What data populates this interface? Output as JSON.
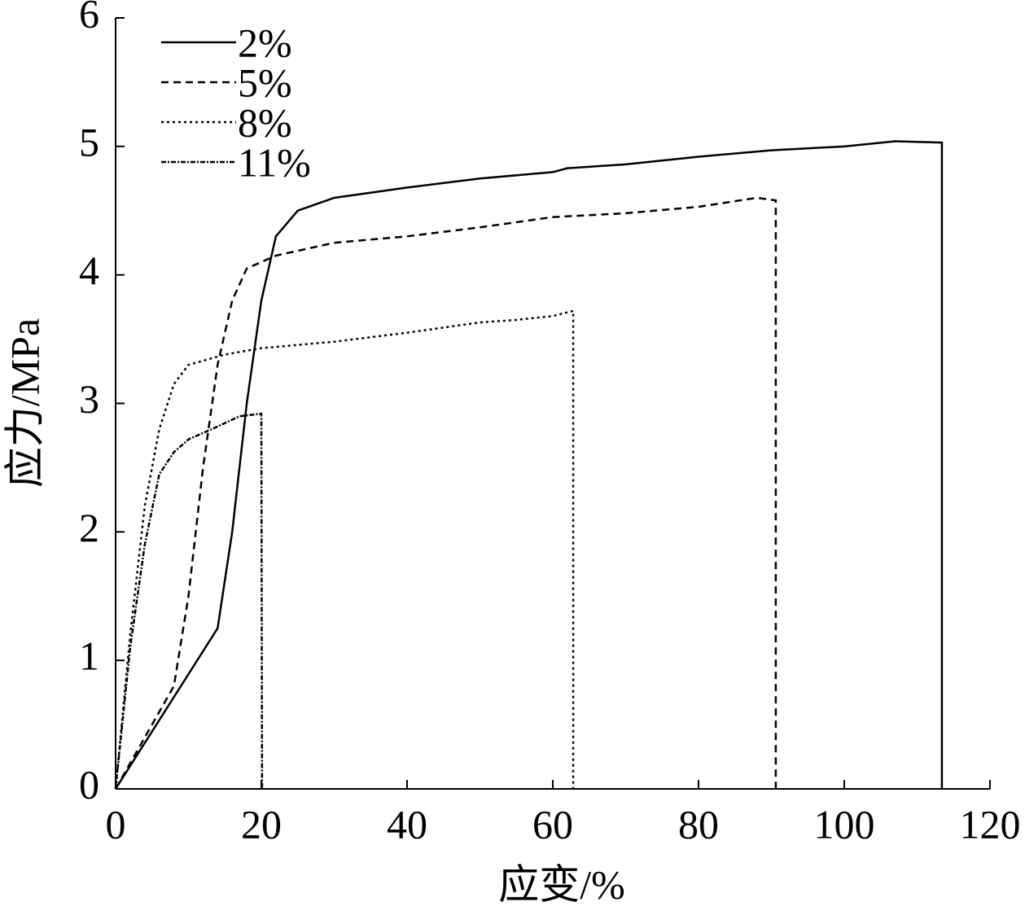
{
  "chart_data": {
    "type": "line",
    "x_label": "应变/%",
    "y_label": "应力/MPa",
    "xlim": [
      0,
      120
    ],
    "xticks": [
      0,
      20,
      40,
      60,
      80,
      100,
      120
    ],
    "ylim": [
      0,
      6
    ],
    "yticks": [
      0,
      1,
      2,
      3,
      4,
      5,
      6
    ],
    "grid": false,
    "legend": "upper left",
    "series": [
      {
        "name": "2%",
        "color": "#000000",
        "dash": "none",
        "x": [
          0,
          14,
          16,
          18,
          20,
          22,
          25,
          30,
          40,
          50,
          60,
          62,
          70,
          80,
          90,
          100,
          107,
          113.4,
          113.4
        ],
        "values": [
          0,
          1.25,
          2,
          3,
          3.8,
          4.3,
          4.5,
          4.6,
          4.68,
          4.75,
          4.8,
          4.83,
          4.86,
          4.92,
          4.97,
          5.0,
          5.04,
          5.03,
          0
        ]
      },
      {
        "name": "5%",
        "color": "#000000",
        "dash": "9,6",
        "x": [
          0,
          8,
          10,
          12,
          14,
          16,
          18,
          22,
          30,
          40,
          50,
          60,
          70,
          80,
          88,
          90.6,
          90.6
        ],
        "values": [
          0,
          0.8,
          1.5,
          2.5,
          3.3,
          3.8,
          4.05,
          4.15,
          4.25,
          4.3,
          4.37,
          4.45,
          4.48,
          4.53,
          4.6,
          4.58,
          0
        ]
      },
      {
        "name": "8%",
        "color": "#000000",
        "dash": "3,4",
        "x": [
          0,
          2,
          4,
          6,
          8,
          10,
          15,
          20,
          30,
          40,
          50,
          55,
          60,
          62.8,
          62.8
        ],
        "values": [
          0,
          1.2,
          2.2,
          2.8,
          3.15,
          3.3,
          3.38,
          3.43,
          3.48,
          3.55,
          3.63,
          3.65,
          3.68,
          3.72,
          0
        ]
      },
      {
        "name": "11%",
        "color": "#000000",
        "dash": "6,2,2,2",
        "x": [
          0,
          2,
          4,
          6,
          8,
          10,
          14,
          17,
          20,
          20.1
        ],
        "values": [
          0,
          1.1,
          1.9,
          2.45,
          2.62,
          2.72,
          2.82,
          2.9,
          2.92,
          0
        ]
      }
    ]
  }
}
